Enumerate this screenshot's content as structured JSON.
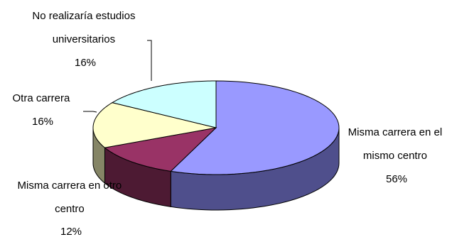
{
  "chart_data": {
    "type": "pie",
    "three_d": true,
    "categories": [
      "Misma carrera en el mismo centro",
      "Misma carrera en otro centro",
      "Otra carrera",
      "No realizaría estudios universitarios"
    ],
    "values": [
      56,
      12,
      16,
      16
    ],
    "value_labels": [
      "56%",
      "12%",
      "16%",
      "16%"
    ],
    "label_lines": [
      [
        "Misma carrera en el",
        "mismo centro",
        "56%"
      ],
      [
        "Misma carrera en otro",
        "centro",
        "12%"
      ],
      [
        "Otra carrera",
        "16%"
      ],
      [
        "No realizaría estudios",
        "universitarios",
        "16%"
      ]
    ],
    "colors": {
      "top": [
        "#9999ff",
        "#993366",
        "#ffffcc",
        "#ccffff"
      ],
      "side": [
        "#4f4f8c",
        "#4d1a33",
        "#858566",
        "#668080"
      ]
    },
    "legend": "none"
  }
}
